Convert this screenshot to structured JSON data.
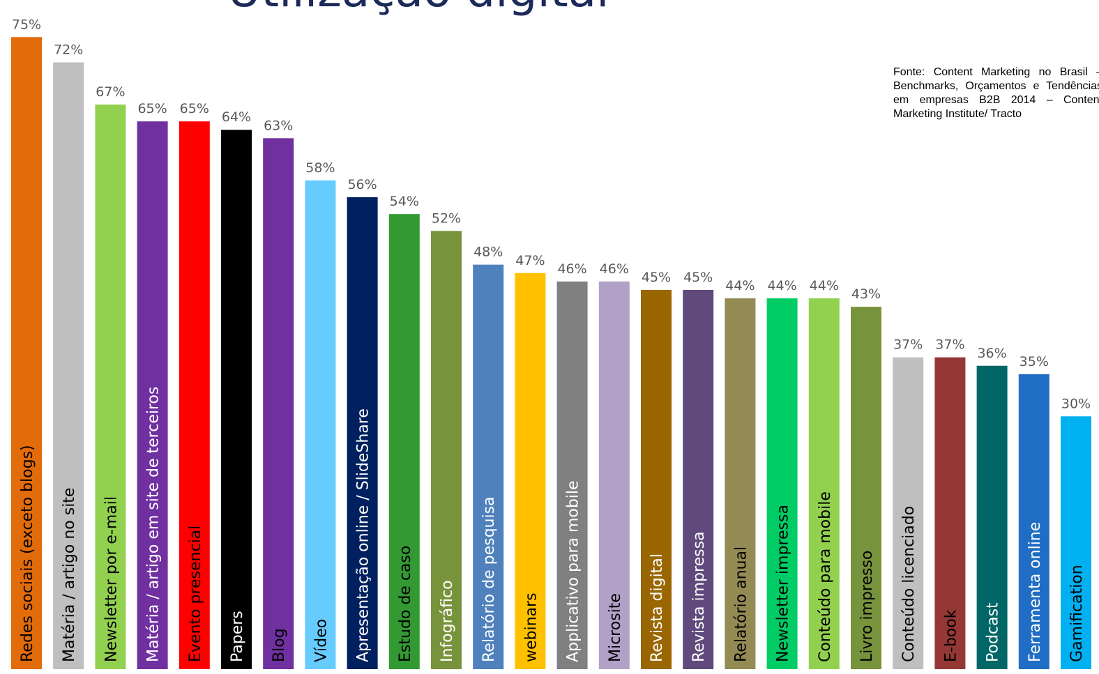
{
  "title": "Utilização digital",
  "source_note": "Fonte: Content Marketing no Brasil – Benchmarks, Orçamentos e Tendências em empresas B2B 2014 – Content Marketing Institute/ Tracto",
  "chart_data": {
    "type": "bar",
    "title": "Utilização digital",
    "xlabel": "",
    "ylabel": "",
    "ylim": [
      0,
      80
    ],
    "grid": false,
    "legend": "none",
    "unit": "%",
    "categories": [
      "Redes sociais (exceto blogs)",
      "Matéria / artigo no site",
      "Newsletter por e-mail",
      "Matéria / artigo em site de terceiros",
      "Evento presencial",
      "Papers",
      "Blog",
      "Vídeo",
      "Apresentação online / SlideShare",
      "Estudo de caso",
      "Infográfico",
      "Relatório de pesquisa",
      "webinars",
      "Applicativo para mobile",
      "Microsite",
      "Revista digital",
      "Revista impressa",
      "Relatório anual",
      "Newsletter impressa",
      "Conteúdo para mobile",
      "Livro impresso",
      "Conteúdo licenciado",
      "E-book",
      "Podcast",
      "Ferramenta online",
      "Gamification"
    ],
    "values": [
      75,
      72,
      67,
      65,
      65,
      64,
      63,
      58,
      56,
      54,
      52,
      48,
      47,
      46,
      46,
      45,
      45,
      44,
      44,
      44,
      43,
      37,
      37,
      36,
      35,
      30
    ],
    "value_labels": [
      "75%",
      "72%",
      "67%",
      "65%",
      "65%",
      "64%",
      "63%",
      "58%",
      "56%",
      "54%",
      "52%",
      "48%",
      "47%",
      "46%",
      "46%",
      "45%",
      "45%",
      "44%",
      "44%",
      "44%",
      "43%",
      "37%",
      "37%",
      "36%",
      "35%",
      "30%"
    ],
    "colors": [
      "#e36c0a",
      "#bfbfbf",
      "#92d050",
      "#7030a0",
      "#ff0000",
      "#000000",
      "#7030a0",
      "#66ccff",
      "#002060",
      "#339933",
      "#77933c",
      "#4f81bd",
      "#ffc000",
      "#808080",
      "#b2a1c7",
      "#996600",
      "#604a7b",
      "#948a54",
      "#00cc66",
      "#92d050",
      "#77933c",
      "#bfbfbf",
      "#953735",
      "#006666",
      "#1f6dc4",
      "#00b0f0"
    ],
    "label_colors": [
      "#000000",
      "#000000",
      "#000000",
      "#ffffff",
      "#000000",
      "#ffffff",
      "#000000",
      "#000000",
      "#ffffff",
      "#000000",
      "#ffffff",
      "#ffffff",
      "#000000",
      "#ffffff",
      "#000000",
      "#ffffff",
      "#ffffff",
      "#000000",
      "#000000",
      "#000000",
      "#000000",
      "#000000",
      "#000000",
      "#ffffff",
      "#ffffff",
      "#000000"
    ]
  }
}
